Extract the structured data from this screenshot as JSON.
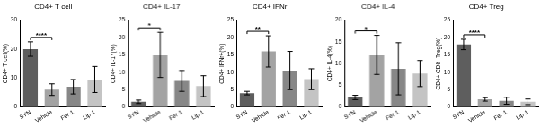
{
  "chart_data": [
    {
      "type": "bar",
      "title": "CD4+ T cell",
      "y_label": "CD4+ T cell(%)",
      "categories": [
        "SYN",
        "Vehicle",
        "Fer-1",
        "Lip-1"
      ],
      "values": [
        20,
        6,
        7,
        9.5
      ],
      "errors": [
        2.5,
        2,
        2.5,
        4.5
      ],
      "colors": [
        "#5e5e5e",
        "#a3a3a3",
        "#878787",
        "#c4c4c4"
      ],
      "ylim": [
        0,
        30
      ],
      "yticks": [
        0,
        10,
        20,
        30
      ],
      "grid": false,
      "significance": [
        {
          "from": "SYN",
          "to": "Vehicle",
          "label": "****"
        }
      ]
    },
    {
      "type": "bar",
      "title": "CD4+ IL-17",
      "y_label": "CD4+ IL-17(%)",
      "categories": [
        "SYN",
        "Vehicle",
        "Fer-1",
        "Lip-1"
      ],
      "values": [
        1.5,
        15,
        7.5,
        6
      ],
      "errors": [
        0.5,
        6.5,
        3,
        3
      ],
      "colors": [
        "#5e5e5e",
        "#a3a3a3",
        "#878787",
        "#c4c4c4"
      ],
      "ylim": [
        0,
        25
      ],
      "yticks": [
        0,
        5,
        10,
        15,
        20,
        25
      ],
      "grid": false,
      "significance": [
        {
          "from": "SYN",
          "to": "Vehicle",
          "label": "*"
        }
      ]
    },
    {
      "type": "bar",
      "title": "CD4+ IFNr",
      "y_label": "CD4+ IFNr+(%)",
      "categories": [
        "SYN",
        "Vehicle",
        "Fer-1",
        "Lip-1"
      ],
      "values": [
        4,
        16,
        10.5,
        8
      ],
      "errors": [
        0.5,
        4.5,
        5.5,
        3
      ],
      "colors": [
        "#5e5e5e",
        "#a3a3a3",
        "#878787",
        "#c4c4c4"
      ],
      "ylim": [
        0,
        25
      ],
      "yticks": [
        0,
        5,
        10,
        15,
        20,
        25
      ],
      "grid": false,
      "significance": [
        {
          "from": "SYN",
          "to": "Vehicle",
          "label": "**"
        }
      ]
    },
    {
      "type": "bar",
      "title": "CD4+ IL-4",
      "y_label": "CD4+ IL-4(%)",
      "categories": [
        "SYN",
        "Vehicle",
        "Fer-1",
        "Lip-1"
      ],
      "values": [
        2.2,
        12,
        8.8,
        7.7
      ],
      "errors": [
        0.5,
        4.5,
        6,
        3
      ],
      "colors": [
        "#5e5e5e",
        "#a3a3a3",
        "#878787",
        "#c4c4c4"
      ],
      "ylim": [
        0,
        20
      ],
      "yticks": [
        0,
        5,
        10,
        15,
        20
      ],
      "grid": false,
      "significance": [
        {
          "from": "SYN",
          "to": "Vehicle",
          "label": "*"
        }
      ]
    },
    {
      "type": "bar",
      "title": "CD4+ Treg",
      "y_label": "CD4+ CD8- Treg(%)",
      "categories": [
        "SYN",
        "Vehicle",
        "Fer-1",
        "Lip-1"
      ],
      "values": [
        18,
        2.2,
        1.8,
        1.5
      ],
      "errors": [
        1.5,
        0.5,
        1,
        0.8
      ],
      "colors": [
        "#5e5e5e",
        "#a3a3a3",
        "#878787",
        "#c4c4c4"
      ],
      "ylim": [
        0,
        25
      ],
      "yticks": [
        0,
        5,
        10,
        15,
        20,
        25
      ],
      "grid": false,
      "significance": [
        {
          "from": "SYN",
          "to": "Vehicle",
          "label": "****"
        }
      ]
    }
  ]
}
